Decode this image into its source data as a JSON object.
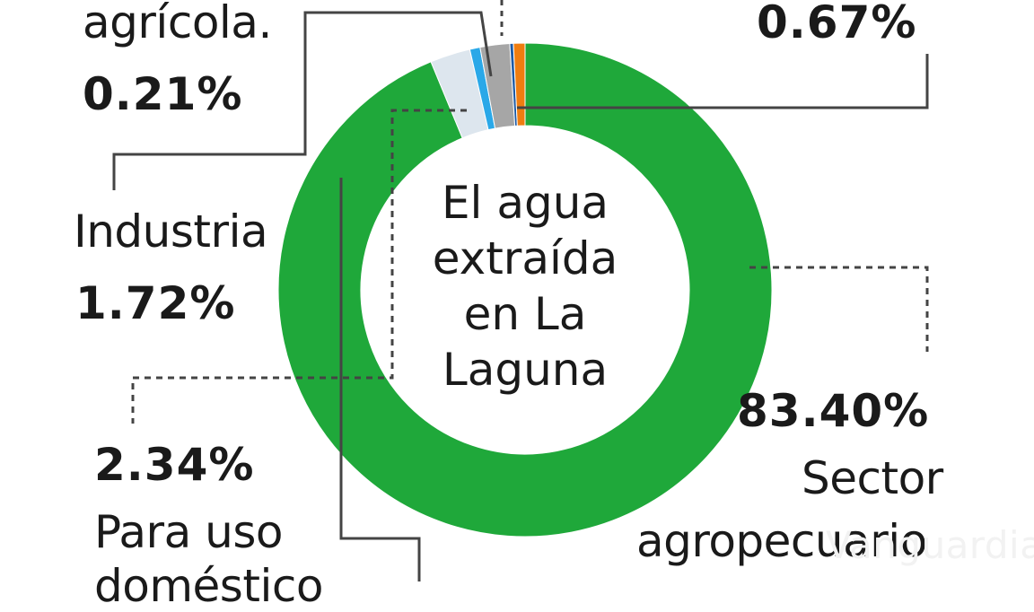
{
  "chart_data": {
    "type": "pie",
    "title": "El agua\nextraída\nen La\nLaguna",
    "series": [
      {
        "label": "Sector agropecuario",
        "value": 83.4,
        "color": "#1fa83a"
      },
      {
        "label": "Para uso doméstico",
        "value": 2.34,
        "color": "#dde6ee"
      },
      {
        "label": "",
        "value": 0.6,
        "color": "#2aa8e8"
      },
      {
        "label": "Industria",
        "value": 1.72,
        "color": "#a6a6a6"
      },
      {
        "label": "agrícola.",
        "value": 0.21,
        "color": "#1c5aa6"
      },
      {
        "label": "",
        "value": 0.67,
        "color": "#ef7d10"
      }
    ]
  },
  "labels": {
    "agricola_name": "agrícola.",
    "agricola_pct": "0.21%",
    "top_right_pct": "0.67%",
    "industria_name": "Industria",
    "industria_pct": "1.72%",
    "domestico_pct": "2.34%",
    "domestico_line1": "Para uso",
    "domestico_line2": "doméstico",
    "agro_pct": "83.40%",
    "agro_line1": "Sector",
    "agro_line2": "agropecuario"
  },
  "watermark": "Vanguardia"
}
